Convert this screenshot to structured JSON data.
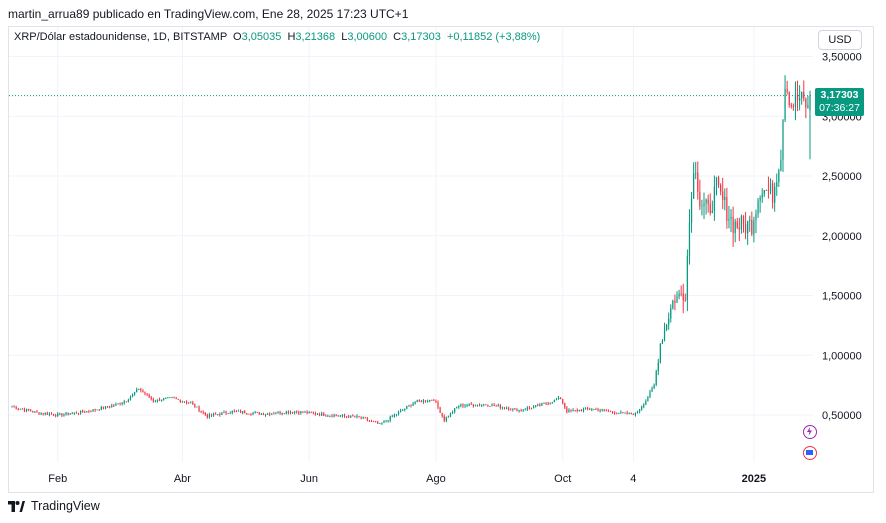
{
  "header": {
    "publisher_line": "martin_arrua89 publicado en TradingView.com, Ene 28, 2025 17:23 UTC+1"
  },
  "legend": {
    "symbol": "XRP/Dólar estadounidense, 1D, BITSTAMP",
    "o_label": "O",
    "o_value": "3,05035",
    "h_label": "H",
    "h_value": "3,21368",
    "l_label": "L",
    "l_value": "3,00600",
    "c_label": "C",
    "c_value": "3,17303",
    "change": "+0,11852 (+3,88%)"
  },
  "currency_button": "USD",
  "last_price": {
    "price": "3,17303",
    "countdown": "07:36:27"
  },
  "footer": {
    "brand": "TradingView"
  },
  "colors": {
    "up": "#089981",
    "down": "#f23645",
    "grid": "#f0f3fa",
    "axis_text": "#131722"
  },
  "chart_data": {
    "type": "candlestick",
    "title": "XRP/Dólar estadounidense, 1D, BITSTAMP",
    "y_tick_labels": [
      "3,50000",
      "3,00000",
      "2,50000",
      "2,00000",
      "1,50000",
      "1,00000",
      "0,50000"
    ],
    "y_ticks": [
      3.5,
      3.0,
      2.5,
      2.0,
      1.5,
      1.0,
      0.5
    ],
    "ylim": [
      0.05,
      3.6
    ],
    "x_tick_labels": [
      "Feb",
      "Abr",
      "Jun",
      "Ago",
      "Oct",
      "4",
      "2025"
    ],
    "x_ticks": [
      "2024-02-01",
      "2024-04-01",
      "2024-06-01",
      "2024-08-01",
      "2024-10-01",
      "2024-11-04",
      "2025-01-01"
    ],
    "x_range": [
      "2024-01-10",
      "2025-01-28"
    ],
    "last_close": 3.17303,
    "grid": true,
    "approx_daily_close_anchors": [
      [
        "2024-01-10",
        0.57
      ],
      [
        "2024-01-22",
        0.52
      ],
      [
        "2024-02-01",
        0.5
      ],
      [
        "2024-02-15",
        0.53
      ],
      [
        "2024-02-28",
        0.58
      ],
      [
        "2024-03-05",
        0.62
      ],
      [
        "2024-03-11",
        0.72
      ],
      [
        "2024-03-18",
        0.62
      ],
      [
        "2024-03-27",
        0.64
      ],
      [
        "2024-04-05",
        0.6
      ],
      [
        "2024-04-13",
        0.49
      ],
      [
        "2024-04-25",
        0.53
      ],
      [
        "2024-05-10",
        0.51
      ],
      [
        "2024-05-25",
        0.53
      ],
      [
        "2024-06-10",
        0.5
      ],
      [
        "2024-06-25",
        0.48
      ],
      [
        "2024-07-05",
        0.42
      ],
      [
        "2024-07-14",
        0.52
      ],
      [
        "2024-07-22",
        0.61
      ],
      [
        "2024-07-31",
        0.63
      ],
      [
        "2024-08-05",
        0.46
      ],
      [
        "2024-08-12",
        0.58
      ],
      [
        "2024-08-25",
        0.59
      ],
      [
        "2024-09-10",
        0.54
      ],
      [
        "2024-09-20",
        0.58
      ],
      [
        "2024-09-30",
        0.64
      ],
      [
        "2024-10-03",
        0.53
      ],
      [
        "2024-10-15",
        0.55
      ],
      [
        "2024-10-31",
        0.51
      ],
      [
        "2024-11-05",
        0.51
      ],
      [
        "2024-11-10",
        0.62
      ],
      [
        "2024-11-14",
        0.75
      ],
      [
        "2024-11-17",
        1.1
      ],
      [
        "2024-11-23",
        1.45
      ],
      [
        "2024-11-29",
        1.55
      ],
      [
        "2024-12-02",
        2.4
      ],
      [
        "2024-12-04",
        2.6
      ],
      [
        "2024-12-06",
        2.28
      ],
      [
        "2024-12-10",
        2.2
      ],
      [
        "2024-12-14",
        2.4
      ],
      [
        "2024-12-18",
        2.25
      ],
      [
        "2024-12-22",
        2.1
      ],
      [
        "2024-12-27",
        2.08
      ],
      [
        "2024-12-31",
        2.1
      ],
      [
        "2025-01-04",
        2.4
      ],
      [
        "2025-01-10",
        2.35
      ],
      [
        "2025-01-14",
        2.7
      ],
      [
        "2025-01-16",
        3.3
      ],
      [
        "2025-01-19",
        3.1
      ],
      [
        "2025-01-23",
        3.15
      ],
      [
        "2025-01-26",
        3.1
      ],
      [
        "2025-01-27",
        3.05
      ],
      [
        "2025-01-28",
        3.17303
      ]
    ]
  }
}
